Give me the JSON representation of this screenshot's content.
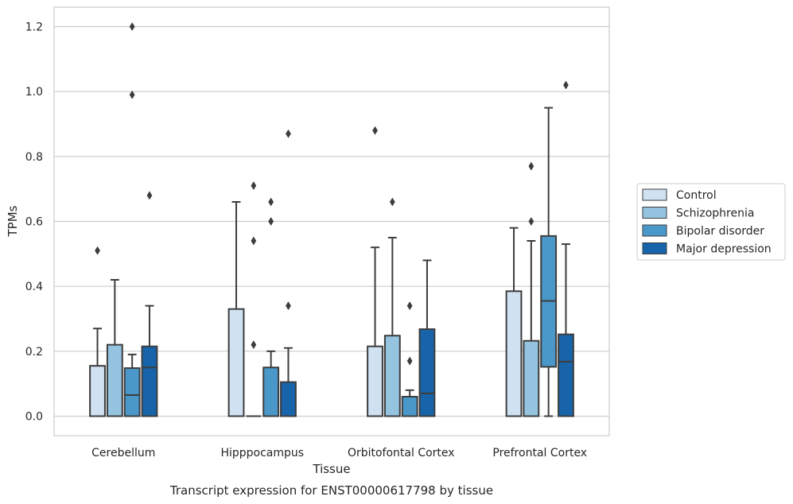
{
  "chart_data": {
    "type": "boxplot",
    "title": "",
    "caption": "Transcript expression for ENST00000617798 by tissue",
    "xlabel": "Tissue",
    "ylabel": "TPMs",
    "ylim": [
      -0.06,
      1.26
    ],
    "yticks": [
      "0.0",
      "0.2",
      "0.4",
      "0.6",
      "0.8",
      "1.0",
      "1.2"
    ],
    "grid": "horizontal",
    "legend_placement": "right",
    "categories": [
      "Cerebellum",
      "Hipppocampus",
      "Orbitofontal Cortex",
      "Prefrontal Cortex"
    ],
    "series": [
      {
        "name": "Control",
        "color": "#d0e1f2",
        "boxes": [
          {
            "whislo": 0,
            "q1": 0,
            "med": 0,
            "q3": 0.155,
            "whishi": 0.27,
            "fliers": [
              0.51
            ]
          },
          {
            "whislo": 0,
            "q1": 0,
            "med": 0,
            "q3": 0.33,
            "whishi": 0.66,
            "fliers": []
          },
          {
            "whislo": 0,
            "q1": 0,
            "med": 0,
            "q3": 0.215,
            "whishi": 0.52,
            "fliers": [
              0.88
            ]
          },
          {
            "whislo": 0,
            "q1": 0,
            "med": 0,
            "q3": 0.385,
            "whishi": 0.58,
            "fliers": []
          }
        ]
      },
      {
        "name": "Schizophrenia",
        "color": "#94c4df",
        "boxes": [
          {
            "whislo": 0,
            "q1": 0,
            "med": 0,
            "q3": 0.22,
            "whishi": 0.42,
            "fliers": []
          },
          {
            "whislo": 0,
            "q1": 0,
            "med": 0,
            "q3": 0,
            "whishi": 0,
            "fliers": [
              0.22,
              0.54,
              0.71
            ]
          },
          {
            "whislo": 0,
            "q1": 0,
            "med": 0,
            "q3": 0.248,
            "whishi": 0.55,
            "fliers": [
              0.66
            ]
          },
          {
            "whislo": 0,
            "q1": 0,
            "med": 0,
            "q3": 0.232,
            "whishi": 0.54,
            "fliers": [
              0.6,
              0.77
            ]
          }
        ]
      },
      {
        "name": "Bipolar disorder",
        "color": "#4a98c9",
        "boxes": [
          {
            "whislo": 0,
            "q1": 0,
            "med": 0.065,
            "q3": 0.148,
            "whishi": 0.19,
            "fliers": [
              0.99,
              1.2
            ]
          },
          {
            "whislo": 0,
            "q1": 0,
            "med": 0,
            "q3": 0.15,
            "whishi": 0.2,
            "fliers": [
              0.6,
              0.66
            ]
          },
          {
            "whislo": 0,
            "q1": 0,
            "med": 0,
            "q3": 0.06,
            "whishi": 0.08,
            "fliers": [
              0.17,
              0.34
            ]
          },
          {
            "whislo": 0,
            "q1": 0.152,
            "med": 0.355,
            "q3": 0.555,
            "whishi": 0.95,
            "fliers": []
          }
        ]
      },
      {
        "name": "Major depression",
        "color": "#1764ab",
        "boxes": [
          {
            "whislo": 0,
            "q1": 0,
            "med": 0.15,
            "q3": 0.215,
            "whishi": 0.34,
            "fliers": [
              0.68
            ]
          },
          {
            "whislo": 0,
            "q1": 0,
            "med": 0,
            "q3": 0.105,
            "whishi": 0.21,
            "fliers": [
              0.34,
              0.87
            ]
          },
          {
            "whislo": 0,
            "q1": 0,
            "med": 0.07,
            "q3": 0.268,
            "whishi": 0.48,
            "fliers": []
          },
          {
            "whislo": 0,
            "q1": 0,
            "med": 0.168,
            "q3": 0.252,
            "whishi": 0.53,
            "fliers": [
              1.02
            ]
          }
        ]
      }
    ]
  }
}
